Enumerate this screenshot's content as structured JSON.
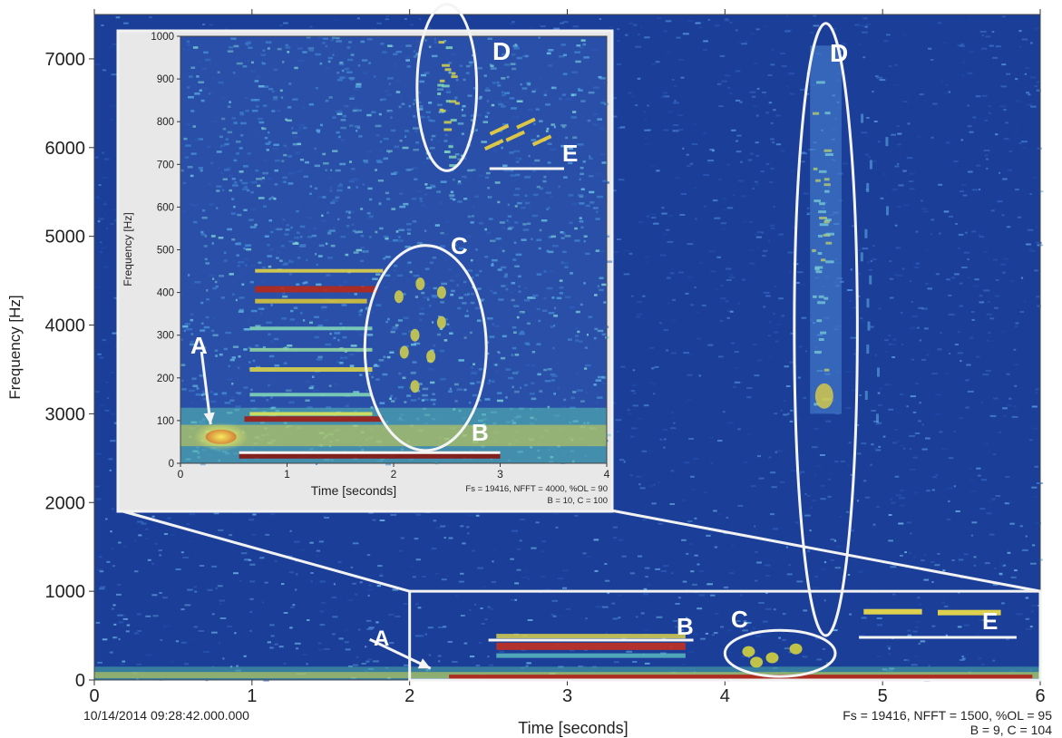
{
  "chart_data": [
    {
      "type": "heatmap",
      "chart_kind": "spectrogram",
      "xlabel": "Time [seconds]",
      "ylabel": "Frequency [Hz]",
      "xlim": [
        0,
        6
      ],
      "ylim": [
        0,
        7500
      ],
      "x_ticks": [
        "0",
        "1",
        "2",
        "3",
        "4",
        "5",
        "6"
      ],
      "y_ticks": [
        "0",
        "1000",
        "2000",
        "3000",
        "4000",
        "5000",
        "6000",
        "7000"
      ],
      "timestamp": "10/14/2014 09:28:42.000.000",
      "params_line1": "Fs = 19416, NFFT = 1500, %OL = 95",
      "params_line2": "B = 9, C = 104",
      "zoom_region": {
        "x": [
          2,
          6
        ],
        "y": [
          0,
          1000
        ]
      },
      "annotations": [
        {
          "label": "A",
          "kind": "arrow",
          "at": [
            2.15,
            100
          ]
        },
        {
          "label": "B",
          "kind": "line",
          "x": [
            2.5,
            3.8
          ],
          "y": 450
        },
        {
          "label": "C",
          "kind": "ellipse",
          "center": [
            4.35,
            300
          ],
          "rx_time": 0.35,
          "ry_freq": 260
        },
        {
          "label": "D",
          "kind": "ellipse",
          "center": [
            4.64,
            3950
          ],
          "rx_time": 0.2,
          "ry_freq": 3450
        },
        {
          "label": "E",
          "kind": "line",
          "x": [
            4.85,
            5.85
          ],
          "y": 480
        }
      ]
    },
    {
      "type": "heatmap",
      "chart_kind": "spectrogram-inset",
      "xlabel": "Time [seconds]",
      "ylabel": "Frequency [Hz]",
      "xlim": [
        0,
        4
      ],
      "ylim": [
        0,
        1000
      ],
      "x_ticks": [
        "0",
        "1",
        "2",
        "3",
        "4"
      ],
      "y_ticks": [
        "0",
        "100",
        "200",
        "300",
        "400",
        "500",
        "600",
        "700",
        "800",
        "900",
        "1000"
      ],
      "params_line1": "Fs = 19416, NFFT = 4000, %OL = 90",
      "params_line2": "B = 10, C = 100",
      "annotations": [
        {
          "label": "A",
          "kind": "arrow",
          "at": [
            0.3,
            70
          ]
        },
        {
          "label": "B",
          "kind": "line",
          "x": [
            0.55,
            3.0
          ],
          "y": 25
        },
        {
          "label": "C",
          "kind": "ellipse",
          "center": [
            2.3,
            270
          ],
          "rx_time": 0.57,
          "ry_freq": 240
        },
        {
          "label": "D",
          "kind": "ellipse",
          "center": [
            2.5,
            880
          ],
          "rx_time": 0.28,
          "ry_freq": 195
        },
        {
          "label": "E",
          "kind": "line",
          "x": [
            2.9,
            3.6
          ],
          "y": 690
        }
      ]
    }
  ]
}
